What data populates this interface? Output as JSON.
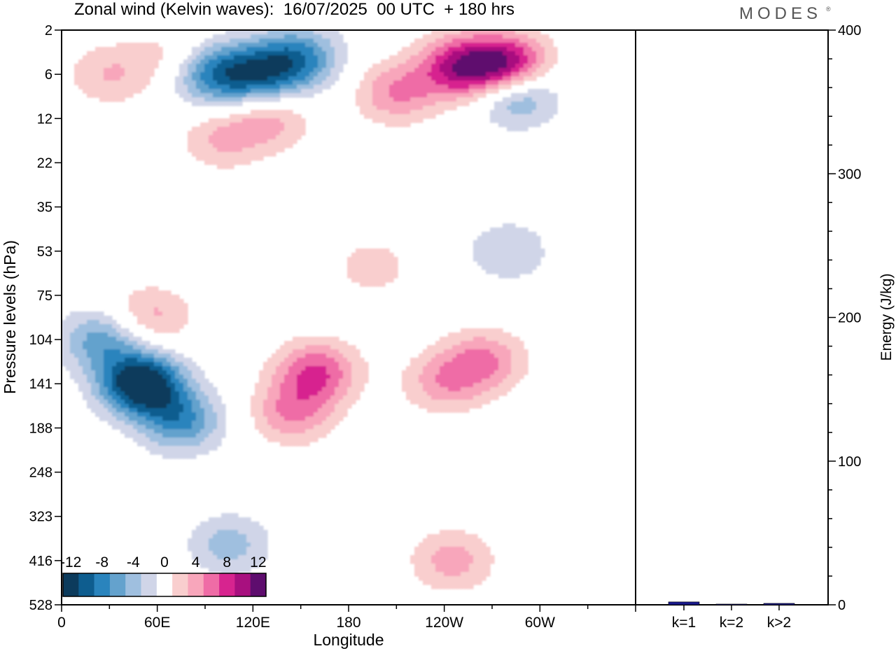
{
  "header": {
    "title": "Zonal wind (Kelvin waves):  16/07/2025  00 UTC  + 180 hrs",
    "brand": "MODES",
    "brand_mark": "®"
  },
  "chart_data": [
    {
      "type": "heatmap",
      "title": "Zonal wind (Kelvin waves):  16/07/2025  00 UTC  + 180 hrs",
      "xlabel": "Longitude",
      "ylabel": "Pressure levels (hPa)",
      "x_ticks": [
        "0",
        "60E",
        "120E",
        "180",
        "120W",
        "60W"
      ],
      "x_tick_degrees": [
        0,
        60,
        120,
        180,
        240,
        300
      ],
      "xlim": [
        0,
        360
      ],
      "y_ticks": [
        "2",
        "6",
        "12",
        "22",
        "35",
        "53",
        "75",
        "104",
        "141",
        "188",
        "248",
        "323",
        "416",
        "528"
      ],
      "colorbar": {
        "labels": [
          "-12",
          "-8",
          "-4",
          "0",
          "4",
          "8",
          "12"
        ],
        "levels": [
          -14,
          -12,
          -10,
          -8,
          -6,
          -4,
          -2,
          2,
          4,
          6,
          8,
          10,
          12,
          14
        ],
        "colors": [
          "#0c3b5c",
          "#0e5d8f",
          "#2a84bd",
          "#64a2cd",
          "#9fbfdf",
          "#d0d5e8",
          "#ffffff",
          "#f9cece",
          "#f8a6bb",
          "#ef6ca6",
          "#d7248f",
          "#a8107f",
          "#5e0d6e"
        ]
      },
      "features": [
        {
          "lon": 50,
          "lev": 141,
          "value": -15
        },
        {
          "lon": 75,
          "lev": 180,
          "value": -8
        },
        {
          "lon": 105,
          "lev": 380,
          "value": -5
        },
        {
          "lon": 95,
          "lev": 6,
          "value": -9
        },
        {
          "lon": 125,
          "lev": 6,
          "value": -9
        },
        {
          "lon": 150,
          "lev": 4,
          "value": -8
        },
        {
          "lon": 25,
          "lev": 104,
          "value": -7
        },
        {
          "lon": 285,
          "lev": 8,
          "value": -9
        },
        {
          "lon": 280,
          "lev": 53,
          "value": -4
        },
        {
          "lon": 160,
          "lev": 130,
          "value": 8
        },
        {
          "lon": 145,
          "lev": 170,
          "value": 6
        },
        {
          "lon": 195,
          "lev": 60,
          "value": 3
        },
        {
          "lon": 240,
          "lev": 140,
          "value": 5
        },
        {
          "lon": 265,
          "lev": 120,
          "value": 6
        },
        {
          "lon": 250,
          "lev": 5,
          "value": 10
        },
        {
          "lon": 280,
          "lev": 5,
          "value": 13
        },
        {
          "lon": 210,
          "lev": 8,
          "value": 6
        },
        {
          "lon": 130,
          "lev": 12,
          "value": 5
        },
        {
          "lon": 100,
          "lev": 16,
          "value": 4
        },
        {
          "lon": 55,
          "lev": 88,
          "value": 5
        },
        {
          "lon": 245,
          "lev": 416,
          "value": 5
        },
        {
          "lon": 30,
          "lev": 6,
          "value": 4
        },
        {
          "lon": 70,
          "lev": 4,
          "value": 3
        }
      ]
    },
    {
      "type": "bar",
      "categories": [
        "k=1",
        "k=2",
        "k>2"
      ],
      "values": [
        2,
        0.5,
        1
      ],
      "ylabel": "Energy (J/kg)",
      "ylim": [
        0,
        400
      ],
      "y_ticks": [
        "0",
        "100",
        "200",
        "300",
        "400"
      ],
      "bar_color": "#1a1a8c"
    }
  ]
}
